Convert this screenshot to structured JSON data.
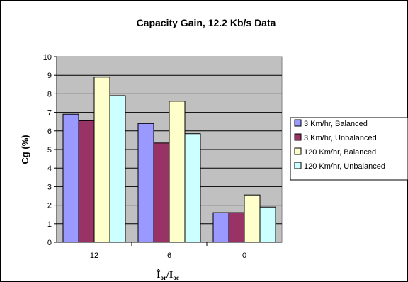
{
  "chart_data": {
    "type": "bar",
    "title": "Capacity Gain, 12.2 Kb/s Data",
    "xlabel": {
      "main": "Î",
      "sub1": "or",
      "sep": "/I",
      "sub2": "oc"
    },
    "ylabel": "Cg (%)",
    "ylim": [
      0,
      10
    ],
    "yticks": [
      "0",
      "1",
      "2",
      "3",
      "4",
      "5",
      "6",
      "7",
      "8",
      "9",
      "10"
    ],
    "categories": [
      "12",
      "6",
      "0"
    ],
    "grid": "horizontal",
    "legend_position": "right",
    "plot_background": "#c0c0c0",
    "series": [
      {
        "name": "3 Km/hr, Balanced",
        "color": "#9999ff",
        "values": [
          6.9,
          6.4,
          1.6
        ]
      },
      {
        "name": "3 Km/hr, Unbalanced",
        "color": "#993366",
        "values": [
          6.55,
          5.35,
          1.6
        ]
      },
      {
        "name": "120 Km/hr, Balanced",
        "color": "#ffffcc",
        "values": [
          8.9,
          7.6,
          2.55
        ]
      },
      {
        "name": "120 Km/hr, Unbalanced",
        "color": "#ccffff",
        "values": [
          7.9,
          5.85,
          1.9
        ]
      }
    ]
  }
}
